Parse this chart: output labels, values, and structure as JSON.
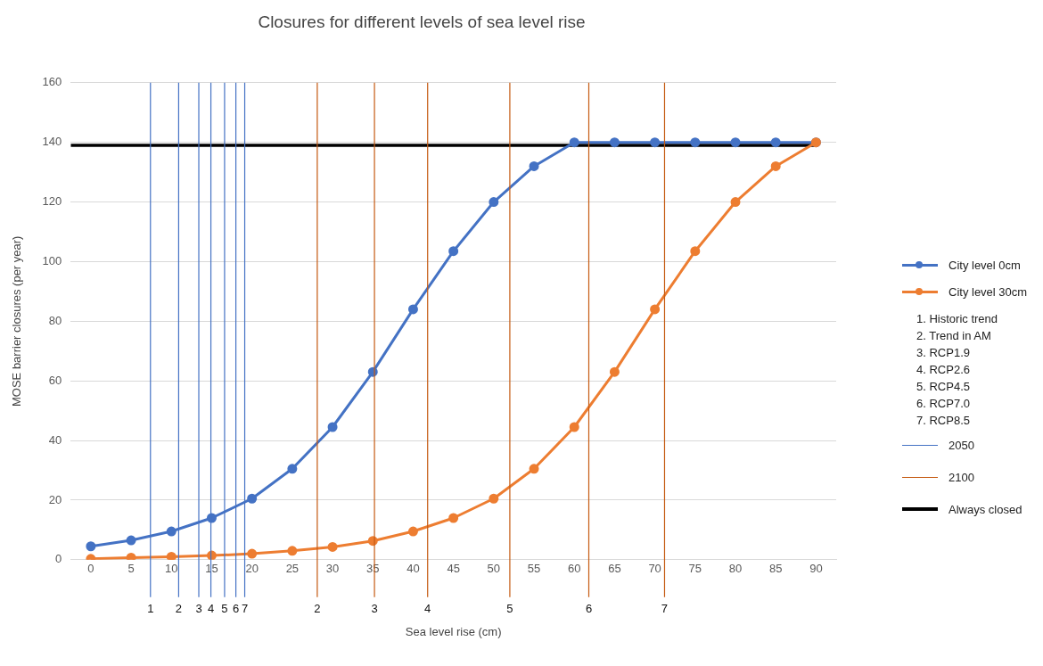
{
  "chart_data": {
    "type": "line",
    "title": "Closures for different levels of sea level rise",
    "xlabel": "Sea level rise (cm)",
    "ylabel": "MOSE barrier closures (per year)",
    "x": [
      0,
      5,
      10,
      15,
      20,
      25,
      30,
      35,
      40,
      45,
      50,
      55,
      60,
      65,
      70,
      75,
      80,
      85,
      90
    ],
    "series": [
      {
        "name": "City level 0cm",
        "color": "#4472c4",
        "values": [
          4.5,
          6.5,
          9.5,
          14,
          20.5,
          30.5,
          44.5,
          63,
          84,
          103.5,
          120,
          132,
          140,
          140,
          140,
          140,
          140,
          140,
          140
        ]
      },
      {
        "name": "City level 30cm",
        "color": "#ed7d31",
        "values": [
          0.3,
          0.7,
          1,
          1.4,
          2,
          3,
          4.3,
          6.3,
          9.5,
          14,
          20.5,
          30.5,
          44.5,
          63,
          84,
          103.5,
          120,
          132,
          140
        ]
      },
      {
        "name": "Always closed",
        "color": "#000000",
        "x": [
          -2.5,
          90
        ],
        "values": [
          139,
          139
        ],
        "marker": "none"
      }
    ],
    "ref_lines": [
      {
        "axis": "x",
        "value": 7.4,
        "color": "#4472c4"
      },
      {
        "axis": "x",
        "value": 10.9,
        "color": "#4472c4"
      },
      {
        "axis": "x",
        "value": 13.4,
        "color": "#4472c4"
      },
      {
        "axis": "x",
        "value": 14.9,
        "color": "#4472c4"
      },
      {
        "axis": "x",
        "value": 16.6,
        "color": "#4472c4"
      },
      {
        "axis": "x",
        "value": 18,
        "color": "#4472c4"
      },
      {
        "axis": "x",
        "value": 19.1,
        "color": "#4472c4"
      },
      {
        "axis": "x",
        "value": 28.1,
        "color": "#c55a11"
      },
      {
        "axis": "x",
        "value": 35.2,
        "color": "#c55a11"
      },
      {
        "axis": "x",
        "value": 41.8,
        "color": "#c55a11"
      },
      {
        "axis": "x",
        "value": 52,
        "color": "#c55a11"
      },
      {
        "axis": "x",
        "value": 61.8,
        "color": "#c55a11"
      },
      {
        "axis": "x",
        "value": 71.2,
        "color": "#c55a11"
      }
    ],
    "annotations": [
      "1. Historic trend",
      "2. Trend in AM",
      "3. RCP1.9",
      "4. RCP2.6",
      "5. RCP4.5",
      "6. RCP7.0",
      "7. RCP8.5",
      "2050",
      "2100",
      "1",
      "2",
      "3",
      "4",
      "5",
      "6",
      "7",
      "2",
      "3",
      "4",
      "5",
      "6",
      "7"
    ],
    "xlim": [
      -2.5,
      92.5
    ],
    "xticks": [
      0,
      5,
      10,
      15,
      20,
      25,
      30,
      35,
      40,
      45,
      50,
      55,
      60,
      65,
      70,
      75,
      80,
      85,
      90
    ],
    "ylim": [
      0,
      160
    ],
    "yticks": [
      0,
      20,
      40,
      60,
      80,
      100,
      120,
      140,
      160
    ],
    "grid": "y",
    "legend": "right",
    "marker": "circle",
    "line_style": "solid"
  }
}
